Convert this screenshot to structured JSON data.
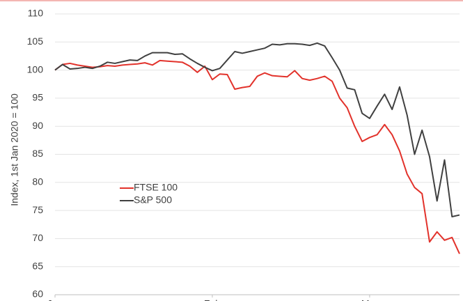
{
  "chart_data": {
    "type": "line",
    "y_label": "Index, 1st Jan 2020 = 100",
    "x": [
      0,
      1,
      2,
      3,
      4,
      5,
      6,
      7,
      8,
      9,
      10,
      11,
      12,
      13,
      14,
      15,
      16,
      17,
      18,
      19,
      20,
      21,
      22,
      23,
      24,
      25,
      26,
      27,
      28,
      29,
      30,
      31,
      32,
      33,
      34,
      35,
      36,
      37,
      38,
      39,
      40,
      41,
      42,
      43,
      44,
      45,
      46,
      47,
      48,
      49,
      50,
      51,
      52,
      53,
      54
    ],
    "xlim": [
      0,
      54
    ],
    "xticks": [
      {
        "value": 0,
        "label": "Jan"
      },
      {
        "value": 21,
        "label": "Feb"
      },
      {
        "value": 42,
        "label": "Mar"
      }
    ],
    "ylim": [
      60,
      110
    ],
    "yticks": [
      60,
      65,
      70,
      75,
      80,
      85,
      90,
      95,
      100,
      105,
      110
    ],
    "grid": true,
    "legend": "left",
    "series": [
      {
        "name": "FTSE 100",
        "color": "#e2322b",
        "values": [
          100,
          101,
          101.2,
          100.9,
          100.7,
          100.5,
          100.6,
          100.8,
          100.7,
          100.9,
          101.0,
          101.1,
          101.3,
          100.9,
          101.7,
          101.6,
          101.5,
          101.4,
          100.7,
          99.6,
          100.7,
          98.3,
          99.3,
          99.2,
          96.6,
          96.9,
          97.1,
          98.9,
          99.5,
          99.0,
          98.9,
          98.8,
          99.9,
          98.5,
          98.2,
          98.5,
          98.9,
          98.0,
          95.0,
          93.3,
          90.0,
          87.3,
          88.0,
          88.5,
          90.3,
          88.5,
          85.6,
          81.5,
          79.1,
          78.0,
          69.4,
          71.2,
          69.7,
          70.2,
          67.3
        ]
      },
      {
        "name": "S&P 500",
        "color": "#404040",
        "values": [
          100,
          101,
          100.2,
          100.3,
          100.5,
          100.3,
          100.7,
          101.4,
          101.2,
          101.5,
          101.8,
          101.7,
          102.5,
          103.1,
          103.1,
          103.1,
          102.8,
          102.9,
          102.0,
          101.2,
          100.5,
          99.9,
          100.3,
          101.8,
          103.3,
          103.0,
          103.3,
          103.6,
          103.9,
          104.6,
          104.5,
          104.7,
          104.7,
          104.6,
          104.4,
          104.8,
          104.3,
          102.2,
          100.0,
          96.8,
          96.5,
          92.3,
          91.4,
          93.6,
          95.7,
          93.0,
          97.0,
          92.0,
          85.0,
          89.3,
          84.6,
          76.7,
          84.0,
          73.9,
          74.2
        ]
      }
    ]
  }
}
